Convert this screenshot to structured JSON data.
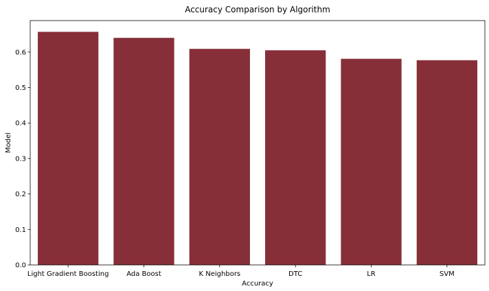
{
  "chart_data": {
    "type": "bar",
    "title": "Accuracy Comparison by Algorithm",
    "xlabel": "Accuracy",
    "ylabel": "Model",
    "categories": [
      "Light Gradient Boosting",
      "Ada Boost",
      "K Neighbors",
      "DTC",
      "LR",
      "SVM"
    ],
    "values": [
      0.657,
      0.64,
      0.609,
      0.605,
      0.581,
      0.577
    ],
    "ylim": [
      0,
      0.6887
    ],
    "yticks": [
      "0.0",
      "0.1",
      "0.2",
      "0.3",
      "0.4",
      "0.5",
      "0.6"
    ],
    "bar_color": "#862f38",
    "grid": false,
    "legend": "none"
  }
}
